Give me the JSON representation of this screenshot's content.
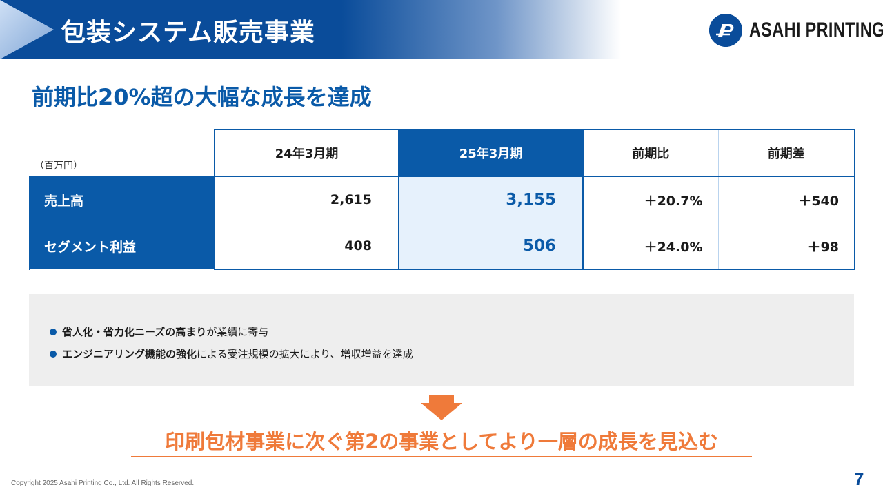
{
  "header": {
    "title": "包装システム販売事業",
    "logo_text": "ASAHI PRINTING",
    "logo_icon": "asahi-printing-logo-icon"
  },
  "subtitle": "前期比20%超の大幅な成長を達成",
  "table": {
    "unit": "（百万円）",
    "columns": [
      "24年3月期",
      "25年3月期",
      "前期比",
      "前期差"
    ],
    "rows": [
      {
        "label": "売上高",
        "fy24": "2,615",
        "fy25": "3,155",
        "ratio": "＋20.7%",
        "diff": "＋540"
      },
      {
        "label": "セグメント利益",
        "fy24": "408",
        "fy25": "506",
        "ratio": "＋24.0%",
        "diff": "＋98"
      }
    ]
  },
  "notes": [
    {
      "bold": "省人化・省力化ニーズの高まり",
      "rest": "が業績に寄与"
    },
    {
      "bold": "エンジニアリング機能の強化",
      "rest": "による受注規模の拡大により、増収増益を達成"
    }
  ],
  "conclusion": "印刷包材事業に次ぐ第2の事業としてより一層の成長を見込む",
  "footer": {
    "copyright": "Copyright 2025 Asahi Printing Co., Ltd. All Rights Reserved.",
    "page_number": "7"
  },
  "colors": {
    "brand_blue": "#0a5aa8",
    "accent_orange": "#ef7a3a",
    "highlight_bg": "#e6f1fc"
  }
}
